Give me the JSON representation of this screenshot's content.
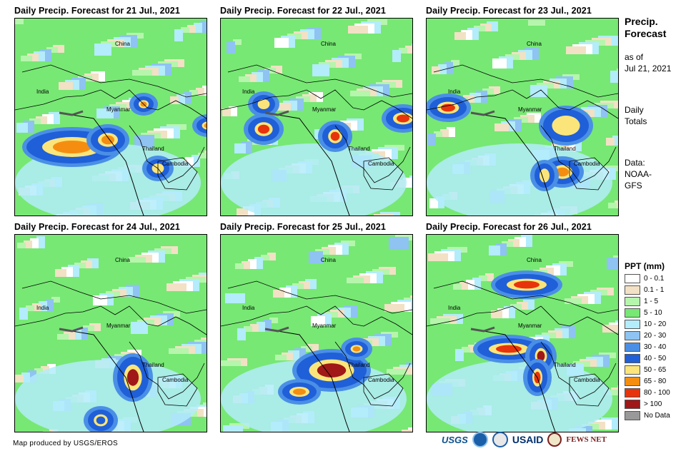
{
  "panels": [
    {
      "title": "Daily Precip. Forecast for 21 Jul., 2021"
    },
    {
      "title": "Daily Precip. Forecast for 22 Jul., 2021"
    },
    {
      "title": "Daily Precip. Forecast for 23 Jul., 2021"
    },
    {
      "title": "Daily Precip. Forecast for 24 Jul., 2021"
    },
    {
      "title": "Daily Precip. Forecast for 25 Jul., 2021"
    },
    {
      "title": "Daily Precip. Forecast for 26 Jul., 2021"
    }
  ],
  "map_labels": {
    "china": "China",
    "india": "India",
    "myanmar": "Myanmar",
    "thailand": "Thailand",
    "cambodia": "Cambodia"
  },
  "sidebar": {
    "title_line1": "Precip.",
    "title_line2": "Forecast",
    "asof_line1": "as of",
    "asof_line2": "Jul 21, 2021",
    "daily_line1": "Daily",
    "daily_line2": "Totals",
    "data_line1": "Data:",
    "data_line2": "NOAA-",
    "data_line3": "GFS"
  },
  "legend": {
    "title": "PPT (mm)",
    "items": [
      {
        "label": "0 - 0.1",
        "color": "#ffffff"
      },
      {
        "label": "0.1 - 1",
        "color": "#f2e1c4"
      },
      {
        "label": "1 - 5",
        "color": "#b6f5ac"
      },
      {
        "label": "5 - 10",
        "color": "#77e874"
      },
      {
        "label": "10 - 20",
        "color": "#b3ecfa"
      },
      {
        "label": "20 - 30",
        "color": "#8ec3f2"
      },
      {
        "label": "30 - 40",
        "color": "#4a8fe6"
      },
      {
        "label": "40 - 50",
        "color": "#1f5fd8"
      },
      {
        "label": "50 - 65",
        "color": "#fbe57a"
      },
      {
        "label": "65 - 80",
        "color": "#f58e10"
      },
      {
        "label": "80 - 100",
        "color": "#e8340c"
      },
      {
        "label": "> 100",
        "color": "#a01818"
      },
      {
        "label": "No Data",
        "color": "#999999"
      }
    ]
  },
  "footer": {
    "credit": "Map produced by USGS/EROS",
    "logo_usgs": "USGS",
    "logo_usaid": "USAID",
    "logo_fews": "FEWS NET"
  }
}
